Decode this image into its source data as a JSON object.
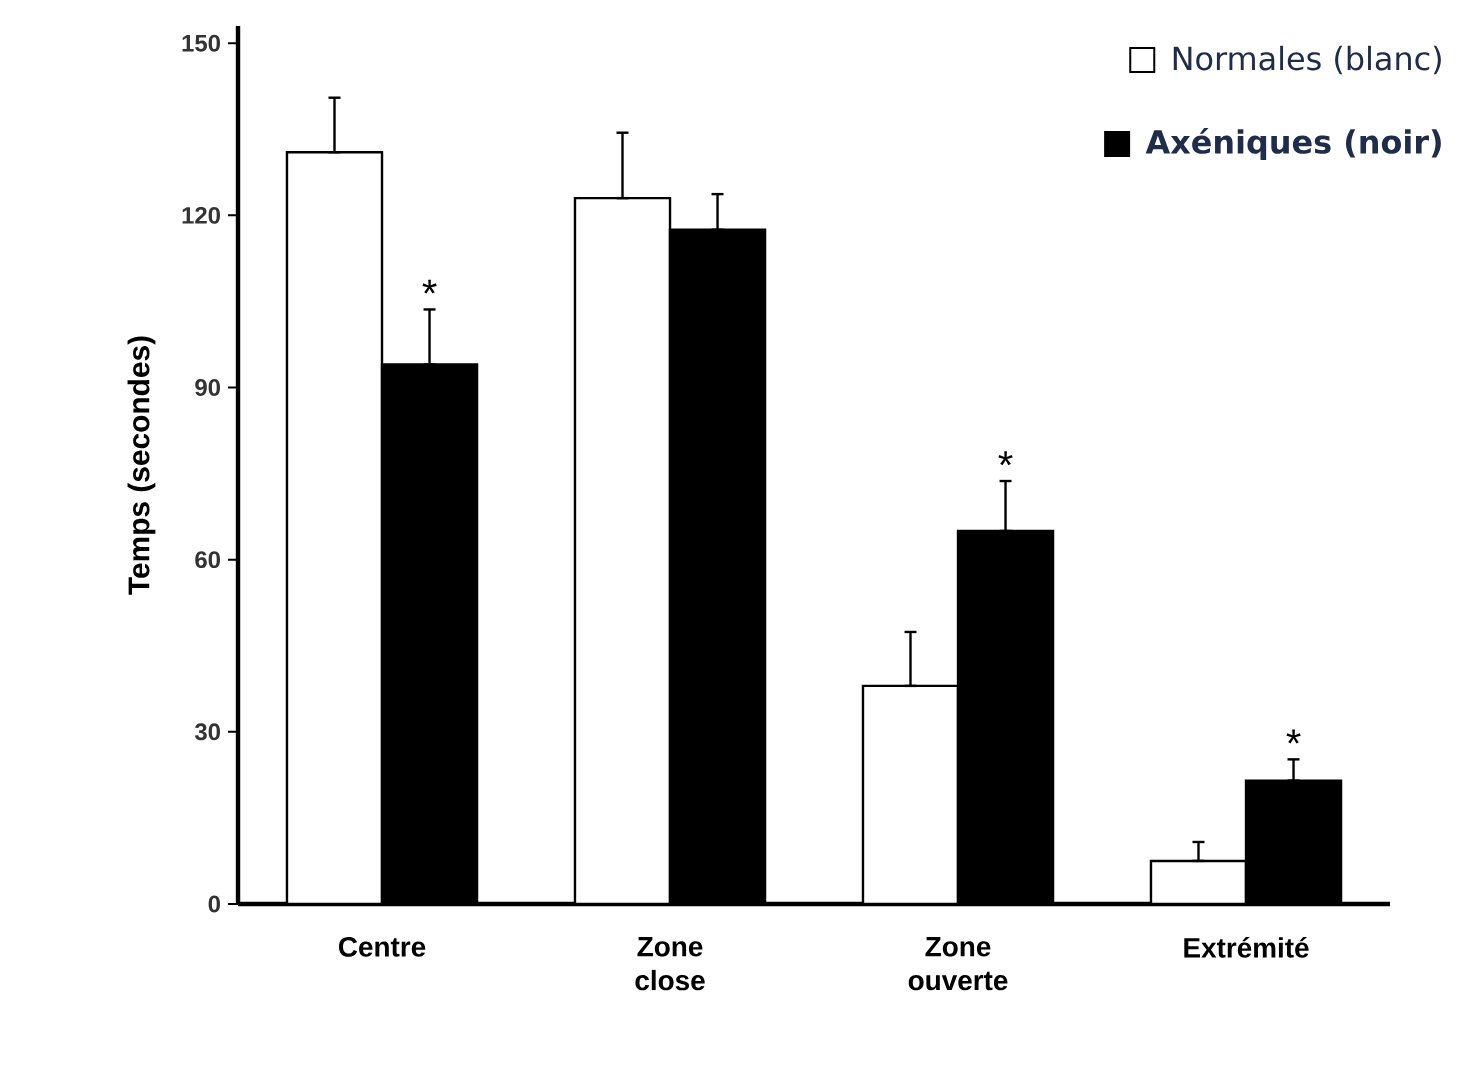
{
  "chart_data": {
    "type": "bar",
    "ylabel": "Temps (secondes)",
    "categories": [
      "Centre",
      "Zone close",
      "Zone ouverte",
      "Extrémité"
    ],
    "series": [
      {
        "name": "Normales (blanc)",
        "color": "#ffffff",
        "values": [
          131,
          123,
          38,
          7.5
        ],
        "errors": [
          [
            131,
            140.5
          ],
          [
            123,
            134.4
          ],
          [
            38,
            47.4
          ],
          [
            7.5,
            10.8
          ]
        ]
      },
      {
        "name": "Axéniques (noir)",
        "color": "#000000",
        "values": [
          94,
          117.5,
          65,
          21.5
        ],
        "errors": [
          [
            94,
            103.6
          ],
          [
            117.5,
            123.7
          ],
          [
            65,
            73.7
          ],
          [
            21.5,
            25.2
          ]
        ]
      }
    ],
    "ylim": [
      0,
      153
    ],
    "yticks": [
      0,
      30,
      60,
      90,
      120,
      150
    ],
    "legend": "top right",
    "grid": false,
    "annotations": [
      {
        "text": "*",
        "x": "Centre",
        "y": 94
      },
      {
        "text": "*",
        "x": "Zone ouverte",
        "y": 65
      },
      {
        "text": "*",
        "x": "Extrémité",
        "y": 21.5
      }
    ]
  }
}
